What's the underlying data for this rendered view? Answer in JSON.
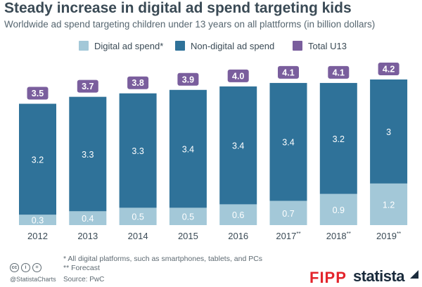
{
  "header": {
    "title": "Steady increase in digital ad spend targeting kids",
    "subtitle": "Worldwide ad spend targeting children under 13 years on all plattforms (in billion dollars)"
  },
  "legend": {
    "items": [
      {
        "label": "Digital ad spend*",
        "color": "#a3c8d8"
      },
      {
        "label": "Non-digital ad spend",
        "color": "#2f7299"
      },
      {
        "label": "Total U13",
        "color": "#7a5e9d"
      }
    ]
  },
  "chart_data": {
    "type": "bar",
    "stacked": true,
    "categories": [
      "2012",
      "2013",
      "2014",
      "2015",
      "2016",
      "2017**",
      "2018**",
      "2019**"
    ],
    "series": [
      {
        "name": "Digital ad spend*",
        "values": [
          0.3,
          0.4,
          0.5,
          0.5,
          0.6,
          0.7,
          0.9,
          1.2
        ],
        "color": "#a3c8d8"
      },
      {
        "name": "Non-digital ad spend",
        "values": [
          3.2,
          3.3,
          3.3,
          3.4,
          3.4,
          3.4,
          3.2,
          3.0
        ],
        "color": "#2f7299"
      }
    ],
    "totals": {
      "name": "Total U13",
      "values": [
        3.5,
        3.7,
        3.8,
        3.9,
        4.0,
        4.1,
        4.1,
        4.2
      ],
      "color": "#7a5e9d"
    },
    "ylim": [
      0,
      4.2
    ],
    "grid": false,
    "legend_position": "top"
  },
  "footnotes": {
    "note1": "*   All digital platforms, such as smartphones, tablets, and PCs",
    "note2": "** Forecast"
  },
  "credit": {
    "icons": [
      "cc-icon",
      "by-icon",
      "nd-icon"
    ],
    "handle": "@StatistaCharts",
    "source": "Source: PwC"
  },
  "logos": {
    "fipp": "FIPP",
    "statista": "statista"
  }
}
